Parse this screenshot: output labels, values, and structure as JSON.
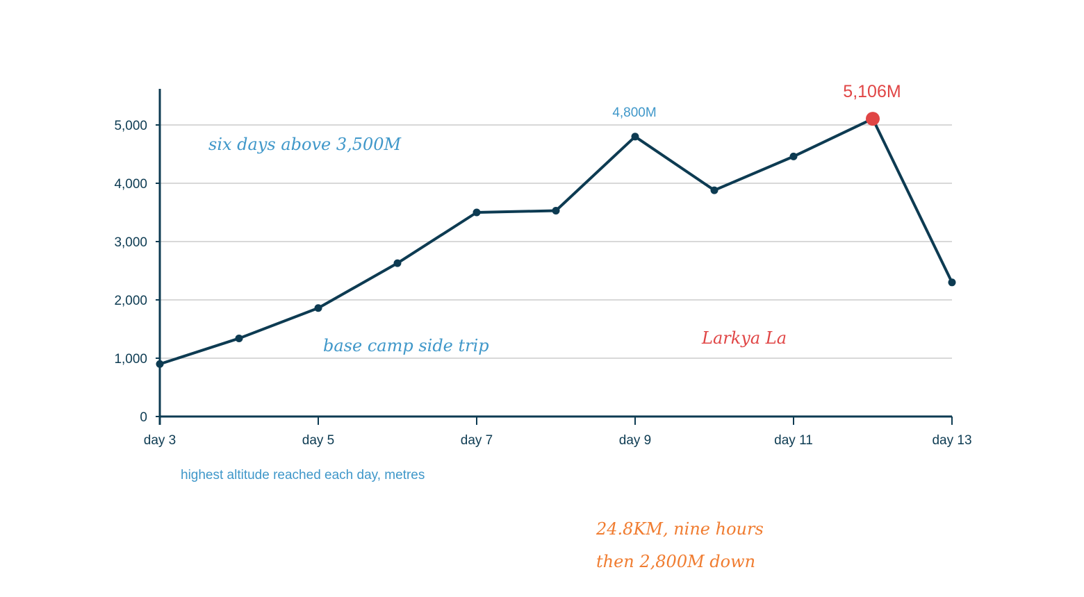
{
  "chart_data": {
    "type": "line",
    "x": [
      3,
      4,
      5,
      6,
      7,
      8,
      9,
      10,
      11,
      12,
      13
    ],
    "x_tick_labels": [
      "day 3",
      "day 5",
      "day 7",
      "day 9",
      "day 11",
      "day 13"
    ],
    "x_ticks": [
      3,
      5,
      7,
      9,
      11,
      13
    ],
    "xlim": [
      3,
      13
    ],
    "series": [
      {
        "values": [
          900,
          1340,
          1860,
          2630,
          3500,
          3530,
          4800,
          3880,
          4460,
          5106,
          2300
        ]
      }
    ],
    "y_ticks": [
      0,
      1000,
      2000,
      3000,
      4000,
      5000
    ],
    "y_tick_labels": [
      "0",
      "1,000",
      "2,000",
      "3,000",
      "4,000",
      "5,000"
    ],
    "ylim": [
      0,
      5600
    ],
    "grid": "horizontal",
    "xlabel": "highest altitude reached each day, metres",
    "annotations": {
      "six_days": "six days above 3,500M",
      "base_camp": "base camp side trip",
      "peak_label": "4,800M",
      "pass_name": "Larkya La",
      "max_label": "5,106M",
      "note_line1": "24.8KM, nine hours",
      "note_line2": "then 2,800M down"
    },
    "highlight_x": 12,
    "colors": {
      "line": "#0d3b52",
      "grid": "#cccccc",
      "blue_note": "#3f97c9",
      "red_note": "#e04545",
      "orange_note": "#f07c30"
    }
  }
}
